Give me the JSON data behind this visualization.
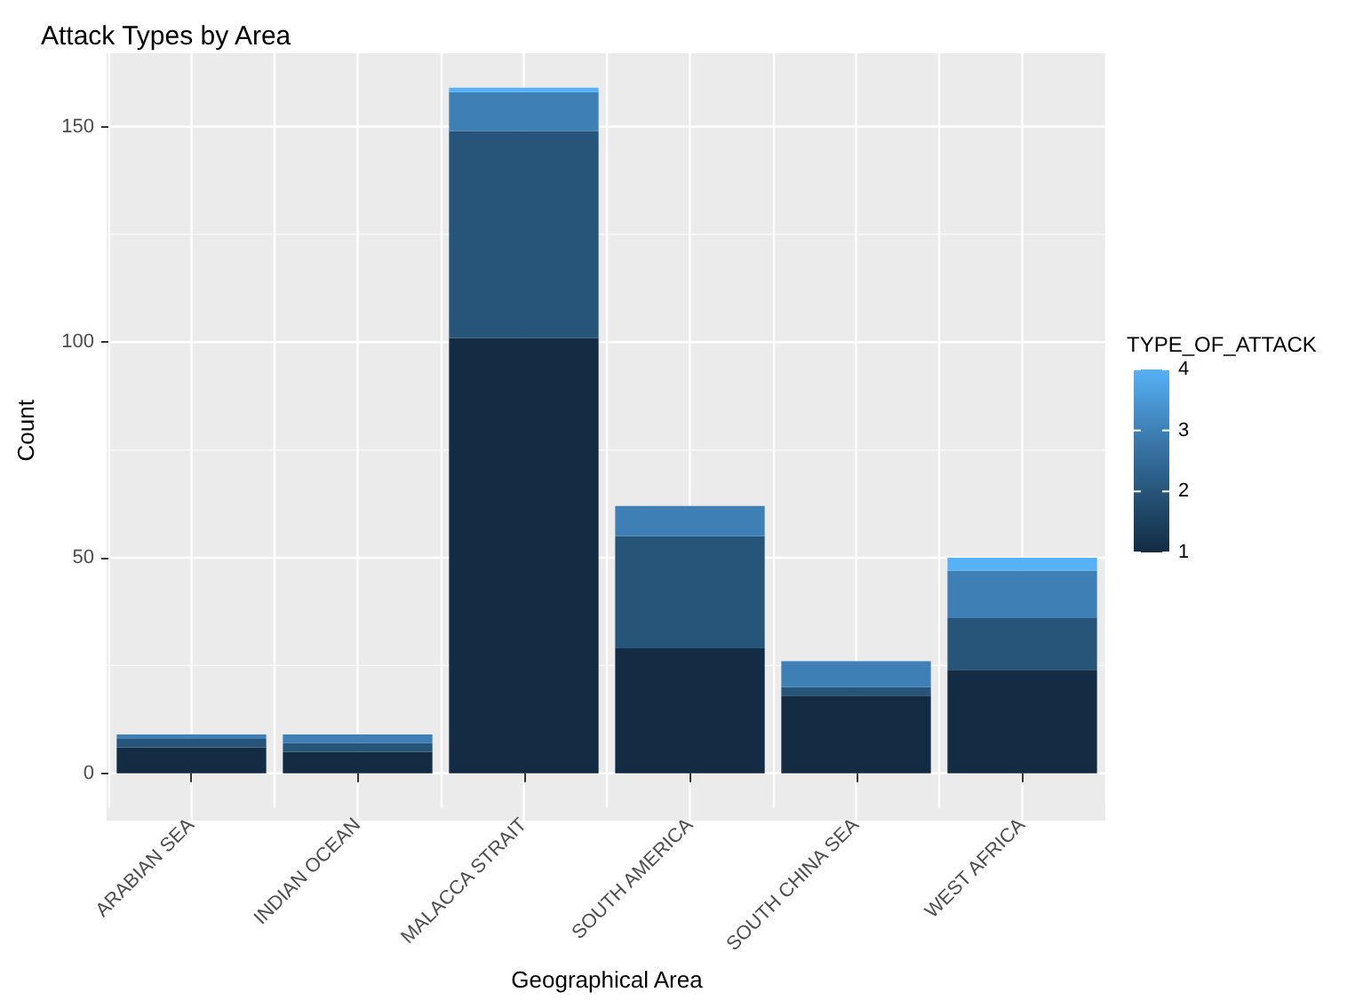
{
  "chart_data": {
    "type": "bar",
    "title": "Attack Types by Area",
    "xlabel": "Geographical Area",
    "ylabel": "Count",
    "clabel": "TYPE_OF_ATTACK",
    "categories": [
      "ARABIAN SEA",
      "INDIAN OCEAN",
      "MALACCA STRAIT",
      "SOUTH AMERICA",
      "SOUTH CHINA SEA",
      "WEST AFRICA"
    ],
    "stacked": true,
    "series": [
      {
        "color": "#132b43",
        "values": [
          6,
          5,
          101,
          29,
          18,
          24
        ]
      },
      {
        "color": "#27557a",
        "values": [
          2,
          2,
          48,
          26,
          2,
          12
        ]
      },
      {
        "color": "#3e80b5",
        "values": [
          1,
          2,
          9,
          7,
          6,
          11
        ]
      },
      {
        "color": "#56b1f7",
        "values": [
          0,
          0,
          1,
          0,
          0,
          3
        ]
      }
    ],
    "ylim": [
      -8,
      167
    ],
    "yticks": [
      0,
      50,
      100,
      150
    ],
    "grid": true,
    "clim": [
      1,
      4
    ],
    "cticks": [
      1,
      2,
      3,
      4
    ]
  }
}
